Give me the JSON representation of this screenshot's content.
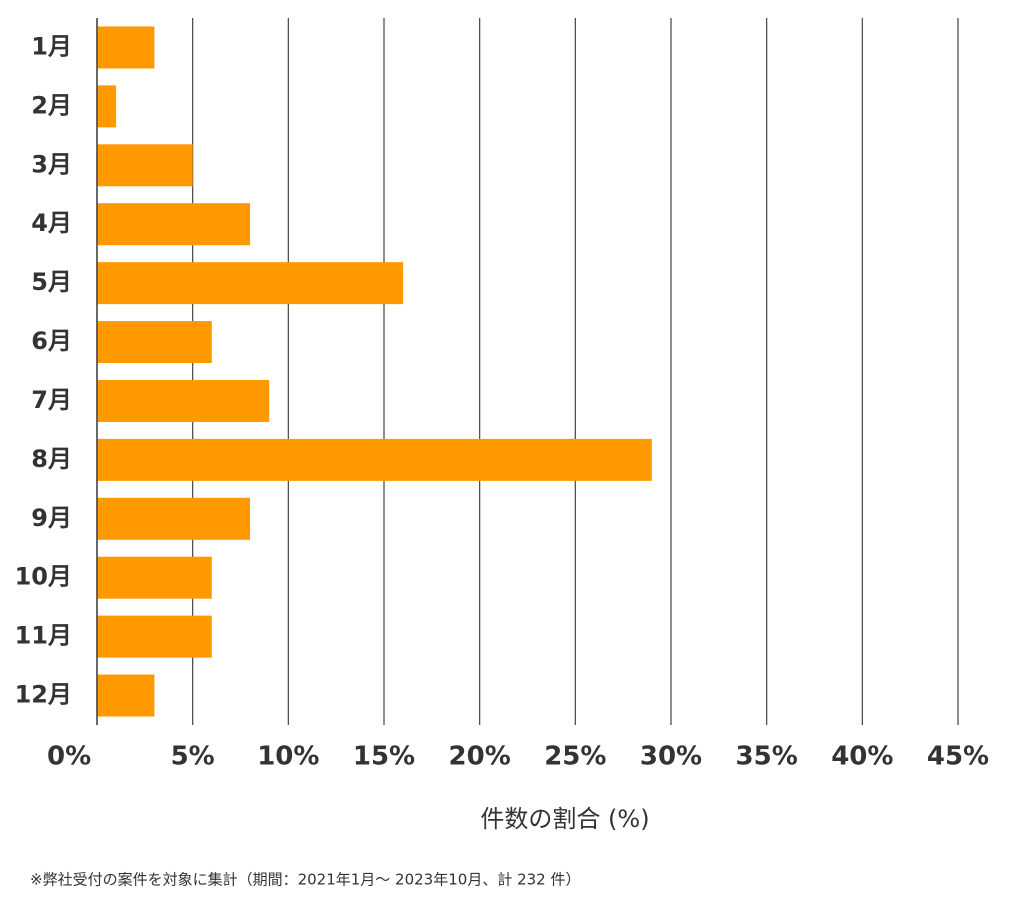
{
  "chart_data": {
    "type": "hbar",
    "categories": [
      "1月",
      "2月",
      "3月",
      "4月",
      "5月",
      "6月",
      "7月",
      "8月",
      "9月",
      "10月",
      "11月",
      "12月"
    ],
    "values": [
      3.0,
      1.0,
      5.0,
      8.0,
      16.0,
      6.0,
      9.0,
      29.0,
      8.0,
      6.0,
      6.0,
      3.0
    ],
    "color": "#ff9900",
    "xlim": [
      0,
      45
    ],
    "xticks": [
      {
        "value": 0,
        "label": "0%"
      },
      {
        "value": 5,
        "label": "5%"
      },
      {
        "value": 10,
        "label": "10%"
      },
      {
        "value": 15,
        "label": "15%"
      },
      {
        "value": 20,
        "label": "20%"
      },
      {
        "value": 25,
        "label": "25%"
      },
      {
        "value": 30,
        "label": "30%"
      },
      {
        "value": 35,
        "label": "35%"
      },
      {
        "value": 40,
        "label": "40%"
      },
      {
        "value": 45,
        "label": "45%"
      }
    ],
    "x_label": "件数の割合 (%)",
    "note": "※弊社受付の案件を対象に集計（期間：2021年1月～ 2023年10月、計 232 件）",
    "grid": true
  }
}
